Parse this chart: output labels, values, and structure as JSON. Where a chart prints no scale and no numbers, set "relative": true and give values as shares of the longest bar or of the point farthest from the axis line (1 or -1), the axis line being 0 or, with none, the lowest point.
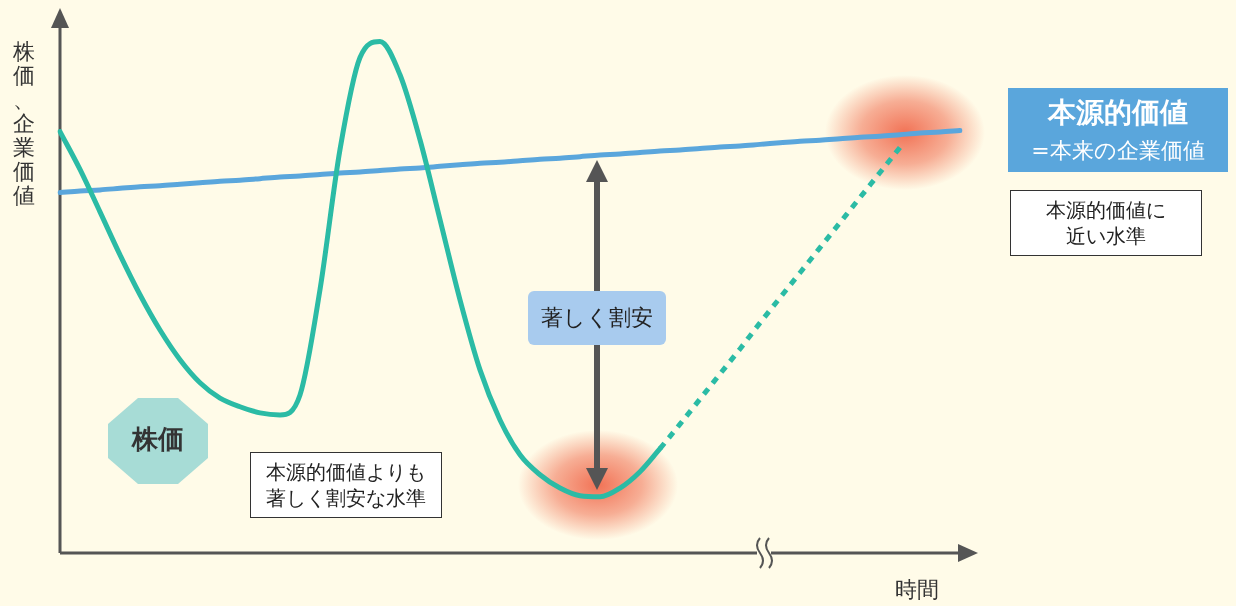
{
  "chart_data": {
    "type": "line",
    "relative": true,
    "legend": false,
    "grid": false,
    "marker": "none",
    "xlabel": "時間",
    "ylabel": "株価、企業価値",
    "categories": [
      null,
      null,
      null,
      null,
      null,
      null,
      null,
      null,
      null,
      null,
      null,
      null,
      null,
      null,
      null,
      null,
      null,
      null,
      null,
      null,
      null,
      null,
      null,
      null,
      null,
      null,
      null,
      null,
      null,
      null,
      null,
      null,
      null,
      null,
      null,
      null,
      null,
      null,
      null,
      null,
      null,
      null,
      null,
      null,
      null,
      null
    ],
    "series": [
      {
        "name": "株価",
        "color": "#2bbba5",
        "line_style": "solid",
        "values": [
          0.824,
          0.75,
          0.667,
          0.583,
          0.505,
          0.436,
          0.378,
          0.333,
          0.303,
          0.286,
          0.274,
          0.27,
          0.309,
          0.515,
          0.789,
          0.969,
          1.0,
          0.935,
          0.808,
          0.652,
          0.495,
          0.358,
          0.26,
          0.192,
          0.153,
          0.127,
          0.112,
          0.11,
          0.127,
          0.159,
          0.204,
          null,
          null,
          null,
          null,
          null,
          null,
          null,
          null,
          null,
          null,
          null,
          null,
          null,
          null,
          null
        ]
      },
      {
        "color": "#2bbba5",
        "line_style": "dotted",
        "values": [
          null,
          null,
          null,
          null,
          null,
          null,
          null,
          null,
          null,
          null,
          null,
          null,
          null,
          null,
          null,
          null,
          null,
          null,
          null,
          null,
          null,
          null,
          null,
          null,
          null,
          null,
          null,
          null,
          null,
          null,
          0.204,
          0.252,
          0.301,
          0.35,
          0.399,
          0.45,
          0.499,
          0.548,
          0.597,
          0.646,
          0.695,
          0.744,
          0.793,
          null,
          null,
          null
        ]
      },
      {
        "name": "本源的価値",
        "color": "#5aa6dc",
        "line_style": "solid",
        "values": [
          0.705,
          0.708,
          0.71,
          0.713,
          0.716,
          0.718,
          0.721,
          0.724,
          0.727,
          0.729,
          0.732,
          0.735,
          0.737,
          0.74,
          0.743,
          0.745,
          0.748,
          0.751,
          0.753,
          0.756,
          0.759,
          0.762,
          0.764,
          0.767,
          0.77,
          0.772,
          0.775,
          0.778,
          0.78,
          0.783,
          0.786,
          0.788,
          0.791,
          0.794,
          0.796,
          0.799,
          0.802,
          0.805,
          0.807,
          0.81,
          0.813,
          0.815,
          0.818,
          0.821,
          0.823,
          0.826
        ]
      }
    ],
    "annotations": [
      "著しく割安",
      "本源的価値よりも著しく割安な水準",
      "本源的価値に近い水準",
      "=本来の企業価値"
    ]
  }
}
